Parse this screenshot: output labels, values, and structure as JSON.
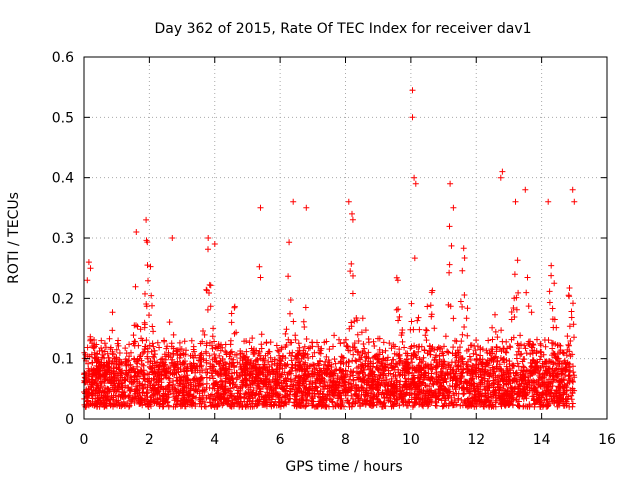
{
  "chart_data": {
    "type": "scatter",
    "title": "Day 362 of 2015, Rate Of TEC Index for receiver dav1",
    "xlabel": "GPS time / hours",
    "ylabel": "ROTI / TECUs",
    "xlim": [
      0,
      16
    ],
    "ylim": [
      0,
      0.6
    ],
    "xticks": [
      0,
      2,
      4,
      6,
      8,
      10,
      12,
      14,
      16
    ],
    "yticks": [
      0,
      0.1,
      0.2,
      0.3,
      0.4,
      0.5,
      0.6
    ],
    "grid": true,
    "marker": "+",
    "color": "#ff0000",
    "series": [
      {
        "name": "dav1",
        "x_range": [
          0,
          15
        ],
        "typical_range": [
          0.02,
          0.12
        ],
        "notable_points": [
          {
            "x": 0.1,
            "y": 0.23
          },
          {
            "x": 0.15,
            "y": 0.26
          },
          {
            "x": 0.2,
            "y": 0.25
          },
          {
            "x": 1.6,
            "y": 0.31
          },
          {
            "x": 1.9,
            "y": 0.33
          },
          {
            "x": 2.7,
            "y": 0.3
          },
          {
            "x": 3.8,
            "y": 0.3
          },
          {
            "x": 4.0,
            "y": 0.29
          },
          {
            "x": 5.4,
            "y": 0.35
          },
          {
            "x": 6.4,
            "y": 0.36
          },
          {
            "x": 6.8,
            "y": 0.35
          },
          {
            "x": 8.1,
            "y": 0.36
          },
          {
            "x": 8.2,
            "y": 0.34
          },
          {
            "x": 10.05,
            "y": 0.545
          },
          {
            "x": 10.05,
            "y": 0.5
          },
          {
            "x": 10.1,
            "y": 0.4
          },
          {
            "x": 10.15,
            "y": 0.39
          },
          {
            "x": 11.2,
            "y": 0.39
          },
          {
            "x": 11.3,
            "y": 0.35
          },
          {
            "x": 12.8,
            "y": 0.41
          },
          {
            "x": 12.75,
            "y": 0.4
          },
          {
            "x": 13.2,
            "y": 0.36
          },
          {
            "x": 13.5,
            "y": 0.38
          },
          {
            "x": 14.2,
            "y": 0.36
          },
          {
            "x": 14.95,
            "y": 0.38
          },
          {
            "x": 15.0,
            "y": 0.36
          }
        ],
        "active_periods": [
          {
            "x": 0.25,
            "max": 0.14
          },
          {
            "x": 0.9,
            "max": 0.19
          },
          {
            "x": 1.65,
            "max": 0.3
          },
          {
            "x": 1.95,
            "max": 0.32
          },
          {
            "x": 2.7,
            "max": 0.22
          },
          {
            "x": 3.8,
            "max": 0.3
          },
          {
            "x": 4.6,
            "max": 0.22
          },
          {
            "x": 5.35,
            "max": 0.26
          },
          {
            "x": 6.3,
            "max": 0.3
          },
          {
            "x": 6.8,
            "max": 0.2
          },
          {
            "x": 8.2,
            "max": 0.34
          },
          {
            "x": 8.6,
            "max": 0.2
          },
          {
            "x": 9.6,
            "max": 0.25
          },
          {
            "x": 10.1,
            "max": 0.3
          },
          {
            "x": 10.6,
            "max": 0.27
          },
          {
            "x": 11.2,
            "max": 0.33
          },
          {
            "x": 11.6,
            "max": 0.31
          },
          {
            "x": 12.6,
            "max": 0.3
          },
          {
            "x": 13.2,
            "max": 0.31
          },
          {
            "x": 13.6,
            "max": 0.25
          },
          {
            "x": 14.3,
            "max": 0.28
          },
          {
            "x": 14.85,
            "max": 0.3
          }
        ],
        "n_points": 4200
      }
    ]
  }
}
